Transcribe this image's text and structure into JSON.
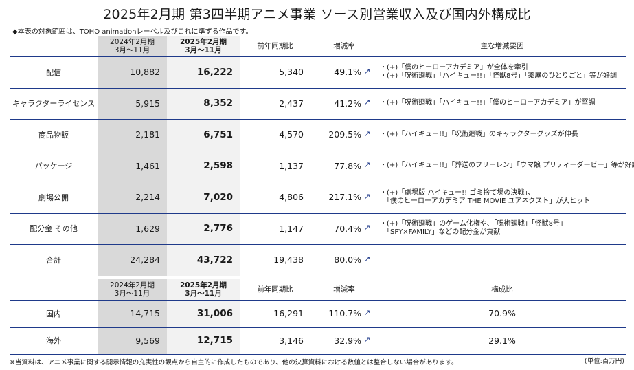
{
  "title": "2025年2月期 第3四半期アニメ事業 ソース別営業収入及び国内外構成比",
  "note": "◆本表の対象範囲は、TOHO animationレーベル及びこれに準ずる作品です。",
  "footnote": "※当資料は、アニメ事業に関する開示情報の充実性の観点から自主的に作成したものであり、他の決算資料における数値とは整合しない場合があります。",
  "unit": "(単位:百万円)",
  "headers": {
    "prev_year": "2024年2月期",
    "prev_period": "3月～11月",
    "cur_year": "2025年2月期",
    "cur_period": "3月～11月",
    "yoy": "前年同期比",
    "rate": "増減率",
    "reasons": "主な増減要因",
    "composition": "構成比"
  },
  "rows": [
    {
      "label": "配信",
      "prev": "10,882",
      "cur": "16,222",
      "diff": "5,340",
      "rate": "49.1%",
      "arrow": "↗",
      "reasons": [
        "・(+)「僕のヒーローアカデミア」が全体を牽引",
        "・(+)「呪術廻戦」「ハイキュー!!」「怪獣8号」「薬屋のひとりごと」等が好調"
      ]
    },
    {
      "label": "キャラクターライセンス",
      "prev": "5,915",
      "cur": "8,352",
      "diff": "2,437",
      "rate": "41.2%",
      "arrow": "↗",
      "reasons": [
        "・(+)「呪術廻戦」「ハイキュー!!」「僕のヒーローアカデミア」が堅調"
      ]
    },
    {
      "label": "商品物販",
      "prev": "2,181",
      "cur": "6,751",
      "diff": "4,570",
      "rate": "209.5%",
      "arrow": "↗",
      "reasons": [
        "・(+)「ハイキュー!!」「呪術廻戦」のキャラクターグッズが伸長"
      ]
    },
    {
      "label": "パッケージ",
      "prev": "1,461",
      "cur": "2,598",
      "diff": "1,137",
      "rate": "77.8%",
      "arrow": "↗",
      "reasons": [
        "・(+)「ハイキュー!!」「葬送のフリーレン」「ウマ娘 プリティーダービー」等が好調"
      ]
    },
    {
      "label": "劇場公開",
      "prev": "2,214",
      "cur": "7,020",
      "diff": "4,806",
      "rate": "217.1%",
      "arrow": "↗",
      "reasons": [
        "・(+)「劇場版 ハイキュー!! ゴミ捨て場の決戦」、",
        "　「僕のヒーローアカデミア THE MOVIE ユアネクスト」が大ヒット"
      ]
    },
    {
      "label": "配分金 その他",
      "prev": "1,629",
      "cur": "2,776",
      "diff": "1,147",
      "rate": "70.4%",
      "arrow": "↗",
      "reasons": [
        "・(+)「呪術廻戦」のゲーム化権や、「呪術廻戦」「怪獣8号」",
        "　「SPY×FAMILY」などの配分金が貢献"
      ]
    },
    {
      "label": "合計",
      "prev": "24,284",
      "cur": "43,722",
      "diff": "19,438",
      "rate": "80.0%",
      "arrow": "↗",
      "reasons": []
    }
  ],
  "region_rows": [
    {
      "label": "国内",
      "prev": "14,715",
      "cur": "31,006",
      "diff": "16,291",
      "rate": "110.7%",
      "arrow": "↗",
      "share": "70.9%"
    },
    {
      "label": "海外",
      "prev": "9,569",
      "cur": "12,715",
      "diff": "3,146",
      "rate": "32.9%",
      "arrow": "↗",
      "share": "29.1%"
    }
  ]
}
